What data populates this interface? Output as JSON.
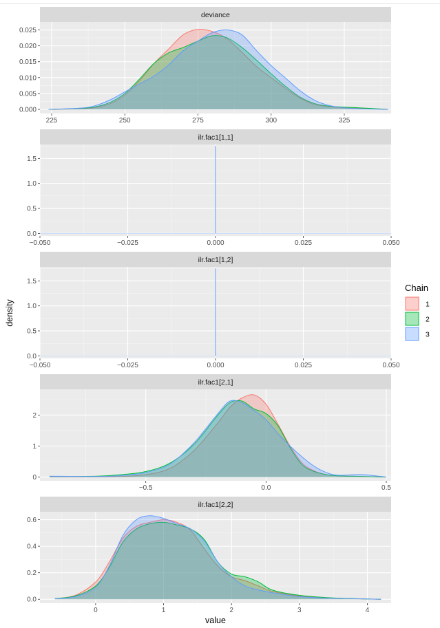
{
  "colors": {
    "chain1": "#F8766D",
    "chain2": "#00BA38",
    "chain3": "#619CFF",
    "panel_bg": "#EBEBEB",
    "strip_bg": "#D9D9D9",
    "grid_major": "#FFFFFF"
  },
  "chart_data": {
    "type": "area",
    "grid": true,
    "legend_position": "right",
    "xlabel": "value",
    "ylabel": "density",
    "legend": {
      "title": "Chain",
      "entries": [
        "1",
        "2",
        "3"
      ]
    },
    "panels": [
      {
        "strip": "deviance",
        "xlim": [
          221,
          341
        ],
        "ylim": [
          -0.0013,
          0.0275
        ],
        "xticks": [
          225,
          250,
          275,
          300,
          325
        ],
        "xtick_labels": [
          "225",
          "250",
          "275",
          "300",
          "325"
        ],
        "yticks": [
          0,
          0.005,
          0.01,
          0.015,
          0.02,
          0.025
        ],
        "ytick_labels": [
          "0.000",
          "0.005",
          "0.010",
          "0.015",
          "0.020",
          "0.025"
        ],
        "series": [
          {
            "name": "1",
            "x": [
              224,
              235,
              240,
              245,
              250,
              255,
              260,
              265,
              270,
              275,
              280,
              285,
              290,
              295,
              300,
              305,
              310,
              315,
              320,
              325,
              330,
              340
            ],
            "y": [
              0,
              0.0002,
              0.0006,
              0.0018,
              0.0045,
              0.009,
              0.0145,
              0.019,
              0.0235,
              0.0252,
              0.0245,
              0.0222,
              0.018,
              0.0135,
              0.01,
              0.0066,
              0.0035,
              0.0015,
              0.0009,
              0.0005,
              0.0003,
              0
            ]
          },
          {
            "name": "2",
            "x": [
              224,
              235,
              240,
              245,
              250,
              255,
              260,
              265,
              270,
              275,
              280,
              285,
              290,
              295,
              300,
              305,
              310,
              315,
              320,
              325,
              330,
              340
            ],
            "y": [
              0,
              0.0003,
              0.0008,
              0.0022,
              0.005,
              0.0095,
              0.0145,
              0.0178,
              0.0195,
              0.0215,
              0.0232,
              0.0225,
              0.0195,
              0.0155,
              0.0112,
              0.0072,
              0.0038,
              0.0018,
              0.001,
              0.0007,
              0.0005,
              0
            ]
          },
          {
            "name": "3",
            "x": [
              224,
              235,
              240,
              245,
              250,
              255,
              260,
              265,
              270,
              275,
              280,
              285,
              290,
              295,
              300,
              305,
              310,
              315,
              320,
              325,
              330,
              340
            ],
            "y": [
              0,
              0.0004,
              0.0012,
              0.003,
              0.0055,
              0.008,
              0.0105,
              0.014,
              0.0185,
              0.0215,
              0.0242,
              0.025,
              0.0235,
              0.0185,
              0.0138,
              0.0098,
              0.0058,
              0.0028,
              0.0012,
              0.0005,
              0.0002,
              0
            ]
          }
        ]
      },
      {
        "strip": "ilr.fac1[1,1]",
        "xlim": [
          -0.05,
          0.05
        ],
        "ylim": [
          -0.05,
          1.78
        ],
        "xticks": [
          -0.05,
          -0.025,
          0,
          0.025,
          0.05
        ],
        "xtick_labels": [
          "−0.050",
          "−0.025",
          "0.000",
          "0.025",
          "0.050"
        ],
        "yticks": [
          0,
          0.5,
          1,
          1.5
        ],
        "ytick_labels": [
          "0.0",
          "0.5",
          "1.0",
          "1.5"
        ],
        "spike": {
          "x": 0,
          "height": 1.75
        }
      },
      {
        "strip": "ilr.fac1[1,2]",
        "xlim": [
          -0.05,
          0.05
        ],
        "ylim": [
          -0.05,
          1.78
        ],
        "xticks": [
          -0.05,
          -0.025,
          0,
          0.025,
          0.05
        ],
        "xtick_labels": [
          "−0.050",
          "−0.025",
          "0.000",
          "0.025",
          "0.050"
        ],
        "yticks": [
          0,
          0.5,
          1,
          1.5
        ],
        "ytick_labels": [
          "0.0",
          "0.5",
          "1.0",
          "1.5"
        ],
        "spike": {
          "x": 0,
          "height": 1.75
        }
      },
      {
        "strip": "ilr.fac1[2,1]",
        "xlim": [
          -0.94,
          0.52
        ],
        "ylim": [
          -0.12,
          2.83
        ],
        "xticks": [
          -0.5,
          0,
          0.5
        ],
        "xtick_labels": [
          "−0.5",
          "0.0",
          "0.5"
        ],
        "yticks": [
          0,
          1,
          2
        ],
        "ytick_labels": [
          "0",
          "1",
          "2"
        ],
        "series": [
          {
            "name": "1",
            "x": [
              -0.9,
              -0.7,
              -0.6,
              -0.5,
              -0.4,
              -0.3,
              -0.2,
              -0.15,
              -0.1,
              -0.05,
              0,
              0.05,
              0.1,
              0.15,
              0.2,
              0.25,
              0.3,
              0.4,
              0.5
            ],
            "y": [
              0.01,
              0.01,
              0.02,
              0.08,
              0.28,
              0.85,
              1.75,
              2.25,
              2.55,
              2.65,
              2.35,
              1.7,
              1.0,
              0.45,
              0.2,
              0.08,
              0.04,
              0.02,
              0
            ]
          },
          {
            "name": "2",
            "x": [
              -0.9,
              -0.7,
              -0.6,
              -0.5,
              -0.4,
              -0.3,
              -0.2,
              -0.15,
              -0.1,
              -0.05,
              0,
              0.05,
              0.1,
              0.15,
              0.2,
              0.25,
              0.3,
              0.4,
              0.5
            ],
            "y": [
              0.02,
              0.03,
              0.08,
              0.18,
              0.45,
              1.05,
              2.0,
              2.4,
              2.45,
              2.2,
              2.05,
              1.65,
              0.95,
              0.4,
              0.18,
              0.08,
              0.04,
              0.02,
              0
            ]
          },
          {
            "name": "3",
            "x": [
              -0.9,
              -0.7,
              -0.6,
              -0.5,
              -0.4,
              -0.3,
              -0.2,
              -0.15,
              -0.1,
              -0.05,
              0,
              0.05,
              0.1,
              0.15,
              0.2,
              0.25,
              0.3,
              0.4,
              0.5
            ],
            "y": [
              0.03,
              0.02,
              0.05,
              0.15,
              0.42,
              1.1,
              2.05,
              2.45,
              2.4,
              2.15,
              1.85,
              1.4,
              1.0,
              0.65,
              0.35,
              0.15,
              0.06,
              0.08,
              0
            ]
          }
        ]
      },
      {
        "strip": "ilr.fac1[2,2]",
        "xlim": [
          -0.82,
          4.35
        ],
        "ylim": [
          -0.03,
          0.66
        ],
        "xticks": [
          0,
          1,
          2,
          3,
          4
        ],
        "xtick_labels": [
          "0",
          "1",
          "2",
          "3",
          "4"
        ],
        "yticks": [
          0,
          0.2,
          0.4,
          0.6
        ],
        "ytick_labels": [
          "0.0",
          "0.2",
          "0.4",
          "0.6"
        ],
        "series": [
          {
            "name": "1",
            "x": [
              -0.6,
              -0.3,
              0,
              0.2,
              0.4,
              0.6,
              0.8,
              1.0,
              1.2,
              1.4,
              1.6,
              1.8,
              2.0,
              2.2,
              2.4,
              2.6,
              3.0,
              3.5,
              4.2
            ],
            "y": [
              0.005,
              0.03,
              0.13,
              0.28,
              0.46,
              0.55,
              0.58,
              0.6,
              0.58,
              0.52,
              0.38,
              0.25,
              0.17,
              0.14,
              0.1,
              0.06,
              0.025,
              0.008,
              0
            ]
          },
          {
            "name": "2",
            "x": [
              -0.6,
              -0.3,
              0,
              0.2,
              0.4,
              0.6,
              0.8,
              1.0,
              1.2,
              1.4,
              1.6,
              1.8,
              2.0,
              2.2,
              2.4,
              2.6,
              3.0,
              3.5,
              4.2
            ],
            "y": [
              0.005,
              0.025,
              0.1,
              0.24,
              0.43,
              0.53,
              0.57,
              0.58,
              0.56,
              0.53,
              0.45,
              0.28,
              0.19,
              0.17,
              0.13,
              0.07,
              0.03,
              0.01,
              0
            ]
          },
          {
            "name": "3",
            "x": [
              -0.6,
              -0.3,
              0,
              0.2,
              0.4,
              0.6,
              0.8,
              1.0,
              1.2,
              1.4,
              1.6,
              1.8,
              2.0,
              2.2,
              2.4,
              2.6,
              3.0,
              3.5,
              4.2
            ],
            "y": [
              0.005,
              0.02,
              0.09,
              0.25,
              0.48,
              0.6,
              0.63,
              0.61,
              0.57,
              0.53,
              0.44,
              0.28,
              0.17,
              0.1,
              0.07,
              0.05,
              0.02,
              0.008,
              0
            ]
          }
        ]
      }
    ]
  }
}
